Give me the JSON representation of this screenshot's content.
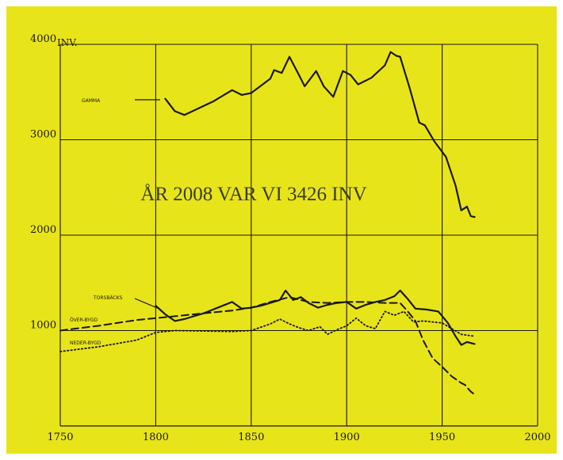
{
  "chart_data": {
    "type": "line",
    "title": "",
    "xlabel": "",
    "ylabel": "",
    "annotation": "ÅR 2008 VAR VI 3426 INV",
    "y_unit": "INV.",
    "xlim": [
      1750,
      2000
    ],
    "ylim": [
      0,
      4000
    ],
    "x_ticks": [
      1750,
      1800,
      1850,
      1900,
      1950,
      2000
    ],
    "y_ticks": [
      1000,
      2000,
      3000,
      4000
    ],
    "y_tick_labels": [
      "1000",
      "2000",
      "3000",
      "4000"
    ],
    "grid": true,
    "series": [
      {
        "name": "GAMMA",
        "style": "solid",
        "points": [
          [
            1805,
            3430
          ],
          [
            1810,
            3300
          ],
          [
            1815,
            3260
          ],
          [
            1830,
            3400
          ],
          [
            1840,
            3520
          ],
          [
            1845,
            3470
          ],
          [
            1850,
            3490
          ],
          [
            1860,
            3640
          ],
          [
            1862,
            3730
          ],
          [
            1866,
            3700
          ],
          [
            1870,
            3870
          ],
          [
            1875,
            3680
          ],
          [
            1878,
            3560
          ],
          [
            1884,
            3720
          ],
          [
            1888,
            3560
          ],
          [
            1893,
            3450
          ],
          [
            1898,
            3720
          ],
          [
            1902,
            3680
          ],
          [
            1906,
            3580
          ],
          [
            1913,
            3650
          ],
          [
            1920,
            3780
          ],
          [
            1923,
            3920
          ],
          [
            1926,
            3880
          ],
          [
            1928,
            3870
          ],
          [
            1933,
            3540
          ],
          [
            1938,
            3180
          ],
          [
            1941,
            3150
          ],
          [
            1946,
            2980
          ],
          [
            1952,
            2820
          ],
          [
            1957,
            2520
          ],
          [
            1960,
            2260
          ],
          [
            1963,
            2300
          ],
          [
            1965,
            2200
          ],
          [
            1967,
            2190
          ]
        ]
      },
      {
        "name": "TORSBÄCKS",
        "style": "solid",
        "points": [
          [
            1800,
            1260
          ],
          [
            1805,
            1170
          ],
          [
            1810,
            1100
          ],
          [
            1815,
            1120
          ],
          [
            1825,
            1180
          ],
          [
            1835,
            1260
          ],
          [
            1840,
            1300
          ],
          [
            1845,
            1230
          ],
          [
            1850,
            1240
          ],
          [
            1855,
            1260
          ],
          [
            1860,
            1290
          ],
          [
            1865,
            1320
          ],
          [
            1868,
            1420
          ],
          [
            1872,
            1320
          ],
          [
            1876,
            1350
          ],
          [
            1880,
            1290
          ],
          [
            1885,
            1240
          ],
          [
            1890,
            1270
          ],
          [
            1895,
            1290
          ],
          [
            1900,
            1300
          ],
          [
            1905,
            1230
          ],
          [
            1910,
            1270
          ],
          [
            1915,
            1300
          ],
          [
            1920,
            1320
          ],
          [
            1925,
            1360
          ],
          [
            1928,
            1420
          ],
          [
            1932,
            1330
          ],
          [
            1936,
            1230
          ],
          [
            1942,
            1220
          ],
          [
            1948,
            1200
          ],
          [
            1953,
            1080
          ],
          [
            1957,
            940
          ],
          [
            1960,
            850
          ],
          [
            1963,
            880
          ],
          [
            1967,
            860
          ]
        ]
      },
      {
        "name": "ÖVER-BYGD",
        "style": "dashed",
        "points": [
          [
            1750,
            1000
          ],
          [
            1770,
            1050
          ],
          [
            1790,
            1110
          ],
          [
            1800,
            1130
          ],
          [
            1810,
            1150
          ],
          [
            1825,
            1180
          ],
          [
            1840,
            1210
          ],
          [
            1850,
            1240
          ],
          [
            1860,
            1300
          ],
          [
            1870,
            1350
          ],
          [
            1880,
            1300
          ],
          [
            1890,
            1290
          ],
          [
            1900,
            1300
          ],
          [
            1910,
            1300
          ],
          [
            1920,
            1290
          ],
          [
            1928,
            1290
          ],
          [
            1932,
            1200
          ],
          [
            1936,
            1100
          ],
          [
            1940,
            900
          ],
          [
            1945,
            710
          ],
          [
            1950,
            620
          ],
          [
            1955,
            520
          ],
          [
            1960,
            450
          ],
          [
            1962,
            430
          ],
          [
            1965,
            360
          ],
          [
            1967,
            330
          ]
        ]
      },
      {
        "name": "NEDER-BYGD",
        "style": "dotted",
        "points": [
          [
            1750,
            780
          ],
          [
            1770,
            830
          ],
          [
            1790,
            900
          ],
          [
            1800,
            980
          ],
          [
            1810,
            1000
          ],
          [
            1840,
            990
          ],
          [
            1850,
            1000
          ],
          [
            1860,
            1070
          ],
          [
            1865,
            1120
          ],
          [
            1870,
            1070
          ],
          [
            1875,
            1030
          ],
          [
            1880,
            1000
          ],
          [
            1886,
            1040
          ],
          [
            1890,
            960
          ],
          [
            1895,
            1010
          ],
          [
            1900,
            1050
          ],
          [
            1905,
            1130
          ],
          [
            1910,
            1050
          ],
          [
            1915,
            1020
          ],
          [
            1920,
            1200
          ],
          [
            1925,
            1160
          ],
          [
            1930,
            1200
          ],
          [
            1935,
            1090
          ],
          [
            1940,
            1100
          ],
          [
            1950,
            1080
          ],
          [
            1960,
            960
          ],
          [
            1967,
            940
          ]
        ]
      }
    ]
  }
}
